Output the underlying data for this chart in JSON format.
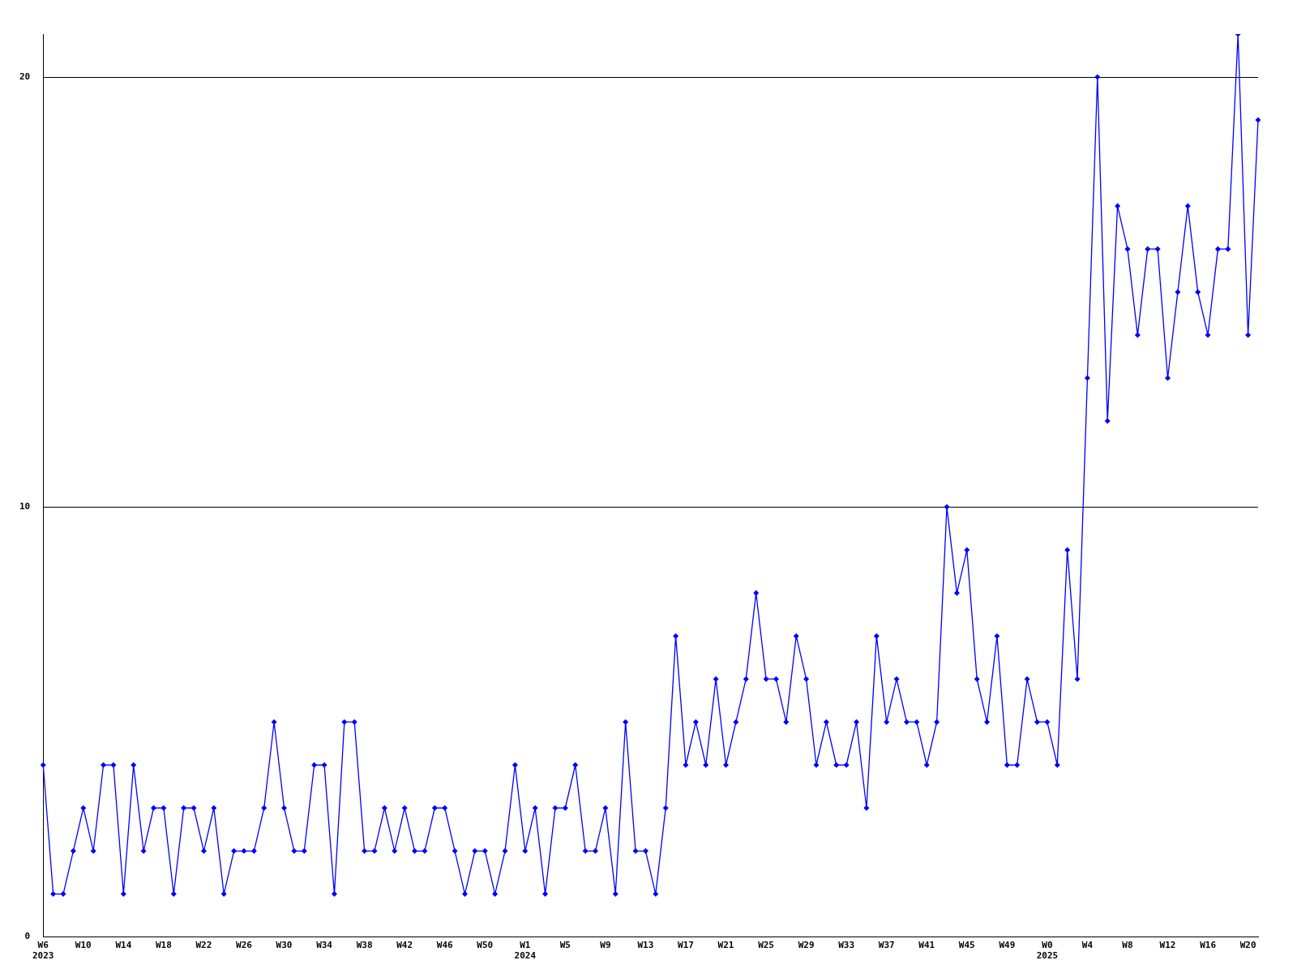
{
  "chart_data": {
    "type": "line",
    "categories": [
      "W6\n2023",
      null,
      null,
      null,
      "W10",
      null,
      null,
      null,
      "W14",
      null,
      null,
      null,
      "W18",
      null,
      null,
      null,
      "W22",
      null,
      null,
      null,
      "W26",
      null,
      null,
      null,
      "W30",
      null,
      null,
      null,
      "W34",
      null,
      null,
      null,
      "W38",
      null,
      null,
      null,
      "W42",
      null,
      null,
      null,
      "W46",
      null,
      null,
      null,
      "W50",
      null,
      null,
      null,
      "W1\n2024",
      null,
      null,
      null,
      "W5",
      null,
      null,
      null,
      "W9",
      null,
      null,
      null,
      "W13",
      null,
      null,
      null,
      "W17",
      null,
      null,
      null,
      "W21",
      null,
      null,
      null,
      "W25",
      null,
      null,
      null,
      "W29",
      null,
      null,
      null,
      "W33",
      null,
      null,
      null,
      "W37",
      null,
      null,
      null,
      "W41",
      null,
      null,
      null,
      "W45",
      null,
      null,
      null,
      "W49",
      null,
      null,
      null,
      "W0\n2025",
      null,
      null,
      null,
      "W4",
      null,
      null,
      null,
      "W8",
      null,
      null,
      null,
      "W12",
      null,
      null,
      null,
      "W16",
      null,
      null,
      null,
      "W20",
      null
    ],
    "series": [
      {
        "color": "#0000ff",
        "values": [
          4,
          1,
          1,
          2,
          3,
          2,
          4,
          4,
          1,
          4,
          2,
          3,
          3,
          1,
          3,
          3,
          2,
          3,
          1,
          2,
          2,
          2,
          3,
          5,
          3,
          2,
          2,
          4,
          4,
          1,
          5,
          5,
          2,
          2,
          3,
          2,
          3,
          2,
          2,
          3,
          3,
          2,
          1,
          2,
          2,
          1,
          2,
          4,
          2,
          3,
          1,
          3,
          3,
          4,
          2,
          2,
          3,
          1,
          5,
          2,
          2,
          1,
          3,
          7,
          4,
          5,
          4,
          6,
          4,
          5,
          6,
          8,
          6,
          6,
          5,
          7,
          6,
          4,
          5,
          4,
          4,
          5,
          3,
          7,
          5,
          6,
          5,
          5,
          4,
          5,
          10,
          8,
          9,
          6,
          5,
          7,
          4,
          4,
          6,
          5,
          5,
          4,
          9,
          6,
          13,
          20,
          12,
          17,
          16,
          14,
          16,
          16,
          13,
          15,
          17,
          15,
          14,
          16,
          16,
          21,
          14,
          19
        ]
      }
    ],
    "ylim": [
      0,
      21
    ],
    "yticks": [
      0,
      10,
      20
    ],
    "grid": "y",
    "legend": false,
    "marker": "diamond",
    "line_style": "solid"
  }
}
